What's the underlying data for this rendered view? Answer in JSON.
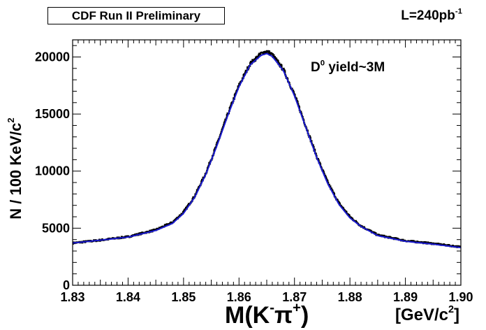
{
  "chart_data": {
    "type": "histogram-with-fit",
    "title": "CDF Run II Preliminary",
    "luminosity": {
      "text": "L=240pb",
      "exponent": "-1"
    },
    "annotation": {
      "prefix": "D",
      "superscript": "0",
      "suffix": " yield~3M"
    },
    "xlabel": {
      "main": "M(K",
      "sup1": "-",
      "pi": "π",
      "sup2": "+",
      "close": ")"
    },
    "xunit": {
      "open": "[GeV/c",
      "sup": "2",
      "close": "]"
    },
    "ylabel": {
      "main": "N / 100 KeV/c",
      "sup": "2"
    },
    "xlim": [
      1.83,
      1.9
    ],
    "ylim": [
      0,
      21500
    ],
    "x_ticks": [
      "1.83",
      "1.84",
      "1.85",
      "1.86",
      "1.87",
      "1.88",
      "1.89",
      "1.90"
    ],
    "y_ticks": [
      "0",
      "5000",
      "10000",
      "15000",
      "20000"
    ],
    "bin_width": 0.0001,
    "series": [
      {
        "name": "data",
        "color": "#000000",
        "x": [
          1.83,
          1.835,
          1.84,
          1.845,
          1.848,
          1.85,
          1.852,
          1.854,
          1.856,
          1.858,
          1.86,
          1.862,
          1.864,
          1.865,
          1.866,
          1.868,
          1.87,
          1.872,
          1.874,
          1.876,
          1.878,
          1.88,
          1.882,
          1.885,
          1.89,
          1.895,
          1.9
        ],
        "values": [
          3700,
          3950,
          4250,
          4850,
          5500,
          6400,
          7800,
          9800,
          12300,
          15000,
          17500,
          19400,
          20300,
          20500,
          20200,
          18900,
          16700,
          14000,
          11300,
          9000,
          7200,
          6000,
          5200,
          4400,
          3900,
          3650,
          3350
        ]
      },
      {
        "name": "fit",
        "color": "#1a1ad0",
        "x": [
          1.83,
          1.835,
          1.84,
          1.845,
          1.848,
          1.85,
          1.852,
          1.854,
          1.856,
          1.858,
          1.86,
          1.862,
          1.864,
          1.865,
          1.866,
          1.868,
          1.87,
          1.872,
          1.874,
          1.876,
          1.878,
          1.88,
          1.882,
          1.885,
          1.89,
          1.895,
          1.9
        ],
        "values": [
          3700,
          3950,
          4220,
          4800,
          5420,
          6300,
          7700,
          9700,
          12200,
          14900,
          17400,
          19300,
          20150,
          20300,
          20050,
          18800,
          16600,
          13900,
          11200,
          8900,
          7100,
          5900,
          5150,
          4350,
          3850,
          3600,
          3300
        ]
      }
    ]
  }
}
